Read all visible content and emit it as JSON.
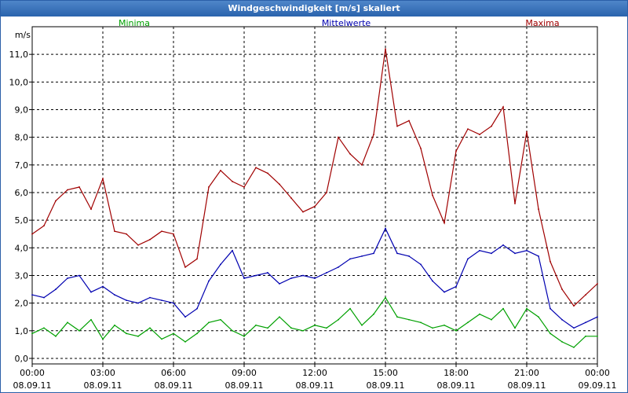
{
  "window": {
    "title": "Windgeschwindigkeit [m/s] skaliert"
  },
  "chart_data": {
    "type": "line",
    "title": "Windgeschwindigkeit [m/s] skaliert",
    "ylabel": "m/s",
    "xlabel": "",
    "ylim": [
      -0.2,
      12.0
    ],
    "xlim": [
      0,
      24
    ],
    "grid": true,
    "yticks": [
      0,
      1,
      2,
      3,
      4,
      5,
      6,
      7,
      8,
      9,
      10,
      11
    ],
    "ytick_labels": [
      "0,0",
      "1,0",
      "2,0",
      "3,0",
      "4,0",
      "5,0",
      "6,0",
      "7,0",
      "8,0",
      "9,0",
      "10,0",
      "11,0"
    ],
    "xticks": [
      0,
      3,
      6,
      9,
      12,
      15,
      18,
      21,
      24
    ],
    "xtick_times": [
      "00:00",
      "03:00",
      "06:00",
      "09:00",
      "12:00",
      "15:00",
      "18:00",
      "21:00",
      "00:00"
    ],
    "xtick_dates": [
      "08.09.11",
      "08.09.11",
      "08.09.11",
      "08.09.11",
      "08.09.11",
      "08.09.11",
      "08.09.11",
      "08.09.11",
      "09.09.11"
    ],
    "legend": [
      "Minima",
      "Mittelwerte",
      "Maxima"
    ],
    "series": [
      {
        "name": "Minima",
        "color": "#00a000",
        "x": [
          0,
          0.5,
          1,
          1.5,
          2,
          2.5,
          3,
          3.5,
          4,
          4.5,
          5,
          5.5,
          6,
          6.5,
          7,
          7.5,
          8,
          8.5,
          9,
          9.5,
          10,
          10.5,
          11,
          11.5,
          12,
          12.5,
          13,
          13.5,
          14,
          14.5,
          15,
          15.5,
          16,
          16.5,
          17,
          17.5,
          18,
          18.5,
          19,
          19.5,
          20,
          20.5,
          21,
          21.5,
          22,
          22.5,
          23,
          23.5,
          24
        ],
        "values": [
          0.9,
          1.1,
          0.8,
          1.3,
          1.0,
          1.4,
          0.7,
          1.2,
          0.9,
          0.8,
          1.1,
          0.7,
          0.9,
          0.6,
          0.9,
          1.3,
          1.4,
          1.0,
          0.8,
          1.2,
          1.1,
          1.5,
          1.1,
          1.0,
          1.2,
          1.1,
          1.4,
          1.8,
          1.2,
          1.6,
          2.2,
          1.5,
          1.4,
          1.3,
          1.1,
          1.2,
          1.0,
          1.3,
          1.6,
          1.4,
          1.8,
          1.1,
          1.8,
          1.5,
          0.9,
          0.6,
          0.4,
          0.8,
          0.8
        ]
      },
      {
        "name": "Mittelwerte",
        "color": "#0000b0",
        "x": [
          0,
          0.5,
          1,
          1.5,
          2,
          2.5,
          3,
          3.5,
          4,
          4.5,
          5,
          5.5,
          6,
          6.5,
          7,
          7.5,
          8,
          8.5,
          9,
          9.5,
          10,
          10.5,
          11,
          11.5,
          12,
          12.5,
          13,
          13.5,
          14,
          14.5,
          15,
          15.5,
          16,
          16.5,
          17,
          17.5,
          18,
          18.5,
          19,
          19.5,
          20,
          20.5,
          21,
          21.5,
          22,
          22.5,
          23,
          23.5,
          24
        ],
        "values": [
          2.3,
          2.2,
          2.5,
          2.9,
          3.0,
          2.4,
          2.6,
          2.3,
          2.1,
          2.0,
          2.2,
          2.1,
          2.0,
          1.5,
          1.8,
          2.8,
          3.4,
          3.9,
          2.9,
          3.0,
          3.1,
          2.7,
          2.9,
          3.0,
          2.9,
          3.1,
          3.3,
          3.6,
          3.7,
          3.8,
          4.7,
          3.8,
          3.7,
          3.4,
          2.8,
          2.4,
          2.6,
          3.6,
          3.9,
          3.8,
          4.1,
          3.8,
          3.9,
          3.7,
          1.8,
          1.4,
          1.1,
          1.3,
          1.5
        ]
      },
      {
        "name": "Maxima",
        "color": "#a00000",
        "x": [
          0,
          0.5,
          1,
          1.5,
          2,
          2.5,
          3,
          3.5,
          4,
          4.5,
          5,
          5.5,
          6,
          6.5,
          7,
          7.5,
          8,
          8.5,
          9,
          9.5,
          10,
          10.5,
          11,
          11.5,
          12,
          12.5,
          13,
          13.5,
          14,
          14.5,
          15,
          15.5,
          16,
          16.5,
          17,
          17.5,
          18,
          18.5,
          19,
          19.5,
          20,
          20.5,
          21,
          21.5,
          22,
          22.5,
          23,
          23.5,
          24
        ],
        "values": [
          4.5,
          4.8,
          5.7,
          6.1,
          6.2,
          5.4,
          6.5,
          4.6,
          4.5,
          4.1,
          4.3,
          4.6,
          4.5,
          3.3,
          3.6,
          6.2,
          6.8,
          6.4,
          6.2,
          6.9,
          6.7,
          6.3,
          5.8,
          5.3,
          5.5,
          6.0,
          8.0,
          7.4,
          7.0,
          8.1,
          11.2,
          8.4,
          8.6,
          7.6,
          5.9,
          4.9,
          7.5,
          8.3,
          8.1,
          8.4,
          9.1,
          5.6,
          8.2,
          5.4,
          3.5,
          2.5,
          1.9,
          2.3,
          2.7
        ]
      }
    ]
  }
}
